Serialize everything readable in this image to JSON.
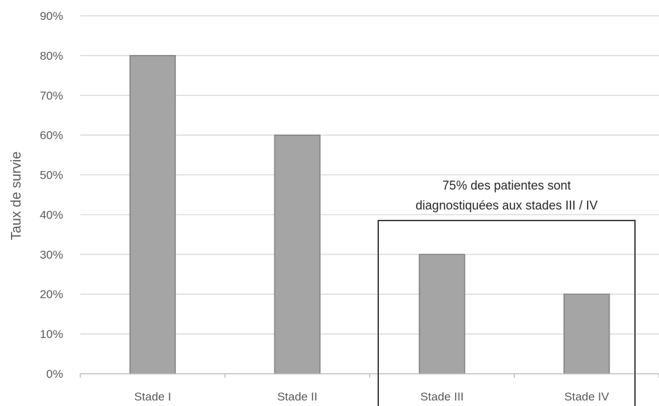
{
  "chart_data": {
    "type": "bar",
    "categories": [
      "Stade I",
      "Stade II",
      "Stade III",
      "Stade IV"
    ],
    "values": [
      80,
      60,
      30,
      20
    ],
    "ylabel": "Taux de survie",
    "xlabel": "",
    "ylim": [
      0,
      90
    ],
    "ytick_step": 10,
    "ytick_labels": [
      "0%",
      "10%",
      "20%",
      "30%",
      "40%",
      "50%",
      "60%",
      "70%",
      "80%",
      "90%"
    ],
    "grid": true,
    "legend": "none",
    "bar_color": "#a5a5a5",
    "bar_edge_color": "#7f7f7f",
    "annotation": {
      "lines": [
        "75% des patientes sont",
        "diagnostiquées aux stades III / IV"
      ],
      "highlighted_categories": [
        "Stade III",
        "Stade IV"
      ]
    }
  }
}
